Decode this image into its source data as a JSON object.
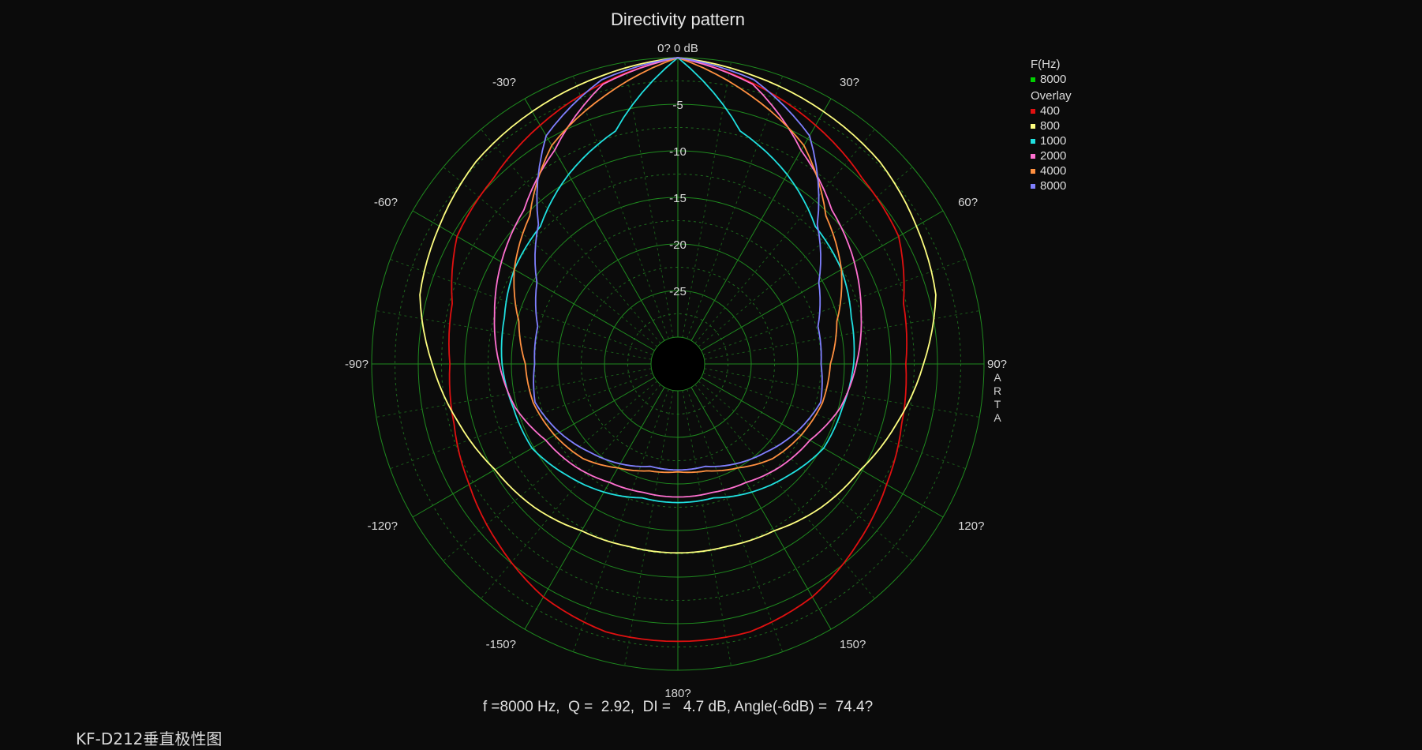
{
  "chart_data": {
    "type": "polar",
    "title": "Directivity pattern",
    "axis_top_label": "0? 0 dB",
    "r_ticks": [
      "-5",
      "-10",
      "-15",
      "-20",
      "-25"
    ],
    "r_tick_values": [
      -5,
      -10,
      -15,
      -20,
      -25
    ],
    "r_range_db": [
      -30,
      0
    ],
    "angle_labels": [
      {
        "angle": 30,
        "text": "30?"
      },
      {
        "angle": 60,
        "text": "60?"
      },
      {
        "angle": 90,
        "text": "90?"
      },
      {
        "angle": 120,
        "text": "120?"
      },
      {
        "angle": 150,
        "text": "150?"
      },
      {
        "angle": 180,
        "text": "180?"
      },
      {
        "angle": -150,
        "text": "-150?"
      },
      {
        "angle": -120,
        "text": "-120?"
      },
      {
        "angle": -90,
        "text": "-90?"
      },
      {
        "angle": -60,
        "text": "-60?"
      },
      {
        "angle": -30,
        "text": "-30?"
      }
    ],
    "grid": true,
    "legend_position": "top-right",
    "legend": {
      "title_current": "F(Hz)",
      "current": {
        "name": "8000",
        "color": "#00d000"
      },
      "title_overlay": "Overlay",
      "overlay": [
        {
          "name": "400",
          "color": "#e01010"
        },
        {
          "name": "800",
          "color": "#ffff80"
        },
        {
          "name": "1000",
          "color": "#20e0e0"
        },
        {
          "name": "2000",
          "color": "#ff70d0"
        },
        {
          "name": "4000",
          "color": "#ff9040"
        },
        {
          "name": "8000",
          "color": "#8080ff"
        }
      ]
    },
    "angles_deg": [
      0,
      15,
      30,
      45,
      60,
      75,
      90,
      105,
      120,
      135,
      150,
      165,
      180
    ],
    "series": [
      {
        "name": "400",
        "color": "#e01010",
        "values_db": [
          0,
          -1.7,
          -3.3,
          -4.8,
          -5.5,
          -7.8,
          -8.4,
          -8.0,
          -7.0,
          -5.6,
          -4.0,
          -3.1,
          -3.1
        ]
      },
      {
        "name": "800",
        "color": "#ffff80",
        "values_db": [
          0,
          -0.9,
          -1.6,
          -2.2,
          -3.3,
          -4.2,
          -6.5,
          -8.5,
          -10.2,
          -11.1,
          -12.2,
          -12.6,
          -12.6
        ]
      },
      {
        "name": "1000",
        "color": "#20e0e0",
        "values_db": [
          0,
          -7.0,
          -9.4,
          -12.0,
          -12.6,
          -13.6,
          -14.0,
          -14.6,
          -14.8,
          -16.0,
          -17.0,
          -18.0,
          -18.0
        ]
      },
      {
        "name": "2000",
        "color": "#ff70d0",
        "values_db": [
          0,
          -1.8,
          -6.4,
          -9.5,
          -11.0,
          -12.5,
          -13.7,
          -14.8,
          -16.5,
          -17.3,
          -18.2,
          -18.6,
          -18.6
        ]
      },
      {
        "name": "4000",
        "color": "#ff9040",
        "values_db": [
          0,
          -3.0,
          -5.8,
          -10.4,
          -12.6,
          -15.2,
          -16.5,
          -16.8,
          -17.6,
          -18.5,
          -20.0,
          -21.0,
          -21.3
        ]
      },
      {
        "name": "8000",
        "color": "#8080ff",
        "values_db": [
          0,
          -1.3,
          -4.6,
          -11.7,
          -15.4,
          -17.3,
          -17.5,
          -17.0,
          -18.2,
          -19.5,
          -20.5,
          -21.5,
          -21.5
        ]
      }
    ],
    "summary": "f =8000 Hz,  Q =  2.92,  DI =   4.7 dB, Angle(-6dB) =  74.4?"
  },
  "arta_label": "ARTA",
  "caption": "KF-D212垂直极性图"
}
